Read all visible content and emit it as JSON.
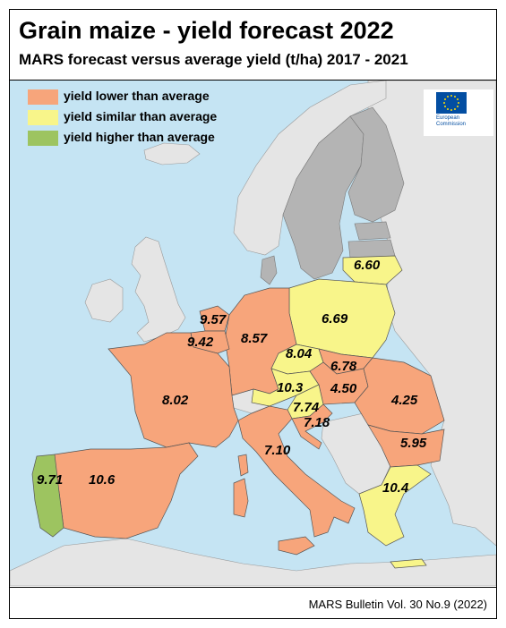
{
  "title": "Grain maize - yield forecast 2022",
  "subtitle": "MARS forecast versus average yield (t/ha) 2017 - 2021",
  "legend": [
    {
      "label": "yield lower than average",
      "color": "#f7a57b"
    },
    {
      "label": "yield similar than average",
      "color": "#f8f58a"
    },
    {
      "label": "yield higher than average",
      "color": "#9dc460"
    }
  ],
  "eu_logo": {
    "line1": "European",
    "line2": "Commission",
    "icon": "eu-flag-icon"
  },
  "colors": {
    "sea": "#c5e4f3",
    "non_eu_land": "#e5e5e5",
    "no_data_land": "#b4b4b4",
    "lower": "#f7a57b",
    "similar": "#f8f58a",
    "higher": "#9dc460"
  },
  "values": {
    "lithuania": "6.60",
    "poland": "6.69",
    "netherlands": "9.57",
    "belgium": "9.42",
    "germany": "8.57",
    "czechia": "8.04",
    "slovakia": "6.78",
    "austria": "10.3",
    "hungary": "4.50",
    "romania": "4.25",
    "france": "8.02",
    "slovenia": "7.74",
    "croatia": "7.18",
    "italy": "7.10",
    "bulgaria": "5.95",
    "greece": "10.4",
    "portugal": "9.71",
    "spain": "10.6"
  },
  "footer": "MARS Bulletin Vol. 30 No.9 (2022)"
}
